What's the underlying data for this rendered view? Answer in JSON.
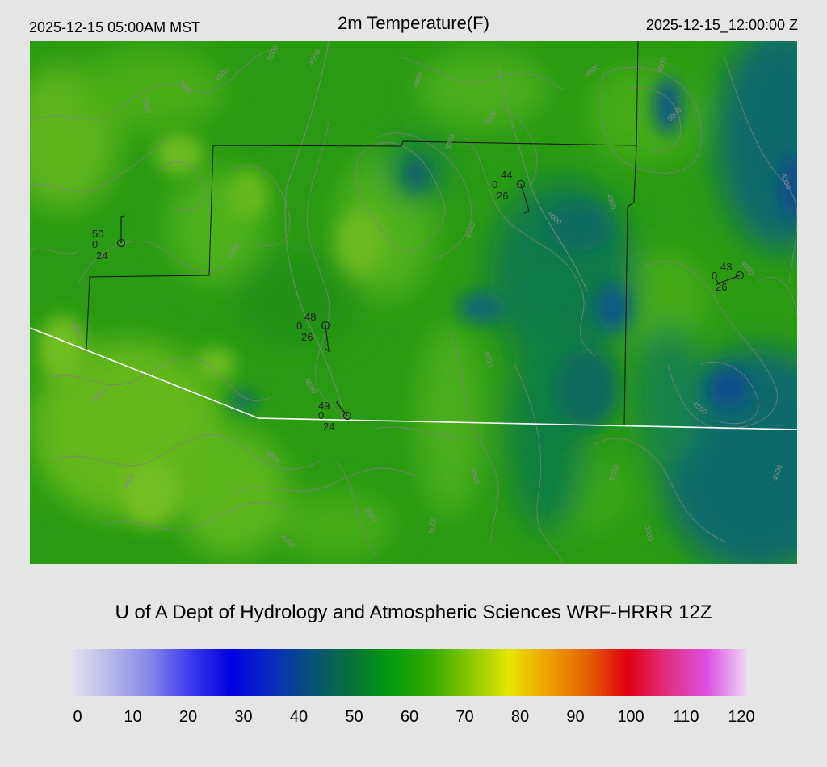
{
  "header": {
    "local_time": "2025-12-15 05:00AM MST",
    "title": "2m Temperature(F)",
    "utc_time": "2025-12-15_12:00:00 Z"
  },
  "credit": "U of A Dept of Hydrology and Atmospheric Sciences WRF-HRRR 12Z",
  "colors": {
    "background": "#e5e5e5",
    "county_lines": "#111111",
    "border_line": "#ffffff",
    "contours": "#808080"
  },
  "colorbar": {
    "ticks": [
      "0",
      "10",
      "20",
      "30",
      "40",
      "50",
      "60",
      "70",
      "80",
      "90",
      "100",
      "110",
      "120"
    ],
    "stops": [
      "#e2e2ee",
      "#b6b6e8",
      "#8484e8",
      "#3a3aea",
      "#0000e0",
      "#0a2ac0",
      "#07507a",
      "#06703a",
      "#009a10",
      "#33aa00",
      "#84c800",
      "#e6e600",
      "#eda000",
      "#e26000",
      "#e00010",
      "#e03080",
      "#dc50e0",
      "#ecdaf0"
    ]
  },
  "map": {
    "contour_labels": [
      "4000",
      "4500",
      "5000",
      "5500",
      "5000",
      "4000",
      "4500",
      "5000",
      "4500",
      "5000",
      "4000",
      "4500",
      "5000",
      "4000",
      "4500",
      "5000",
      "4500",
      "4500",
      "5000",
      "4000",
      "4500",
      "5000",
      "4500",
      "4000",
      "4000",
      "5000",
      "4500",
      "4000",
      "4500",
      "5000",
      "4000"
    ],
    "stations": [
      {
        "temp": "50",
        "wind": "0",
        "dew": "24"
      },
      {
        "temp": "44",
        "wind": "0",
        "dew": "26"
      },
      {
        "temp": "48",
        "wind": "0",
        "dew": "26"
      },
      {
        "temp": "49",
        "wind": "0",
        "dew": "24"
      },
      {
        "temp": "43",
        "wind": "0",
        "dew": "26"
      }
    ]
  }
}
